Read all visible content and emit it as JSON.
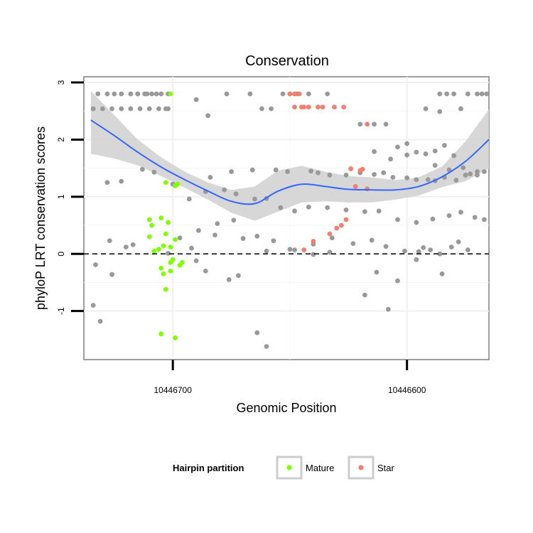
{
  "chart_data": {
    "type": "scatter",
    "title": "Conservation",
    "xlabel": "Genomic Position",
    "ylabel": "phyloP LRT conservation scores",
    "x_reversed": true,
    "xlim": [
      10446738,
      10446565
    ],
    "ylim": [
      -1.85,
      3.1
    ],
    "x_ticks": [
      10446700,
      10446600
    ],
    "x_tick_labels": [
      "10446700",
      "10446600"
    ],
    "y_ticks": [
      -1,
      0,
      1,
      2,
      3
    ],
    "y_tick_labels": [
      "-1",
      "0",
      "1",
      "2",
      "3"
    ],
    "reference_line": {
      "y": 0,
      "style": "dashed"
    },
    "grid": true,
    "legend": {
      "title": "Hairpin partition",
      "placement": "bottom",
      "entries": [
        {
          "label": "Mature",
          "color": "#7fff00"
        },
        {
          "label": "Star",
          "color": "#f08070"
        }
      ]
    },
    "colors": {
      "other": "#999999",
      "mature": "#7fff00",
      "star": "#f08070",
      "smooth": "#3366ff",
      "band": "#d3d3d3"
    },
    "smooth": {
      "x": [
        10446735,
        10446725,
        10446715,
        10446705,
        10446695,
        10446685,
        10446675,
        10446665,
        10446655,
        10446645,
        10446635,
        10446625,
        10446615,
        10446605,
        10446595,
        10446585,
        10446575,
        10446565
      ],
      "y": [
        2.34,
        2.07,
        1.78,
        1.52,
        1.3,
        1.1,
        0.92,
        0.88,
        1.1,
        1.22,
        1.18,
        1.13,
        1.12,
        1.12,
        1.18,
        1.35,
        1.62,
        2.0
      ],
      "lo": [
        1.75,
        1.67,
        1.55,
        1.36,
        1.16,
        0.95,
        0.72,
        0.58,
        0.74,
        0.9,
        0.92,
        0.9,
        0.9,
        0.95,
        1.02,
        1.17,
        1.27,
        1.5
      ],
      "hi": [
        2.85,
        2.43,
        2.0,
        1.69,
        1.44,
        1.25,
        1.12,
        1.18,
        1.46,
        1.54,
        1.44,
        1.36,
        1.34,
        1.29,
        1.34,
        1.53,
        1.97,
        2.53
      ]
    },
    "series": [
      {
        "name": "Mature",
        "color": "#7fff00",
        "x": [
          10446701,
          10446698,
          10446703,
          10446699,
          10446705,
          10446702,
          10446703,
          10446699,
          10446701,
          10446700,
          10446696,
          10446697,
          10446704,
          10446703,
          10446705,
          10446699,
          10446704,
          10446706,
          10446708,
          10446710,
          10446709,
          10446701,
          10446710,
          10446701,
          10446705
        ],
        "y": [
          2.8,
          1.22,
          1.25,
          1.19,
          0.63,
          0.55,
          0.35,
          0.25,
          0.12,
          -0.1,
          -0.15,
          -0.2,
          -0.35,
          -0.62,
          -1.4,
          -1.47,
          0.14,
          0.08,
          0.05,
          0.3,
          0.5,
          -0.3,
          0.6,
          -0.15,
          -0.25
        ]
      },
      {
        "name": "Star",
        "color": "#f08070",
        "x": [
          10446650,
          10446648,
          10446646,
          10446650,
          10446645,
          10446648,
          10446644,
          10446642,
          10446638,
          10446636,
          10446631,
          10446627,
          10446624,
          10446620,
          10446619,
          10446622,
          10446617,
          10446626,
          10446628,
          10446630,
          10446633,
          10446640,
          10446644,
          10446617
        ],
        "y": [
          2.8,
          2.8,
          2.8,
          2.8,
          2.57,
          2.57,
          2.57,
          2.57,
          2.57,
          2.57,
          2.57,
          2.57,
          1.49,
          1.46,
          1.48,
          1.18,
          1.14,
          0.6,
          0.5,
          0.45,
          0.35,
          0.22,
          0.07,
          2.27
        ]
      }
    ],
    "other_points": {
      "x": [
        10446732,
        10446728,
        10446725,
        10446722,
        10446718,
        10446715,
        10446712,
        10446709,
        10446705,
        10446702,
        10446734,
        10446730,
        10446726,
        10446722,
        10446718,
        10446714,
        10446710,
        10446706,
        10446703,
        10446715,
        10446711,
        10446707,
        10446702,
        10446690,
        10446685,
        10446677,
        10446667,
        10446662,
        10446658,
        10446653,
        10446647,
        10446642,
        10446634,
        10446620,
        10446614,
        10446609,
        10446604,
        10446600,
        10446596,
        10446592,
        10446588,
        10446584,
        10446580,
        10446574,
        10446570,
        10446566,
        10446614,
        10446607,
        10446600,
        10446588,
        10446582,
        10446576,
        10446573,
        10446570,
        10446586,
        10446583,
        10446580,
        10446577,
        10446568,
        10446586,
        10446592,
        10446684,
        10446675,
        10446666,
        10446656,
        10446651,
        10446641,
        10446638,
        10446633,
        10446626,
        10446620,
        10446614,
        10446610,
        10446606,
        10446600,
        10446596,
        10446591,
        10446588,
        10446584,
        10446579,
        10446575,
        10446570,
        10446567,
        10446728,
        10446722,
        10446713,
        10446708,
        10446700,
        10446693,
        10446686,
        10446678,
        10446673,
        10446665,
        10446660,
        10446654,
        10446648,
        10446642,
        10446634,
        10446626,
        10446618,
        10446612,
        10446604,
        10446596,
        10446589,
        10446582,
        10446577,
        10446571,
        10446567,
        10446697,
        10446689,
        10446681,
        10446674,
        10446664,
        10446657,
        10446648,
        10446640,
        10446632,
        10446623,
        10446615,
        10446609,
        10446601,
        10446593,
        10446586,
        10446578,
        10446733,
        10446727,
        10446717,
        10446702,
        10446692,
        10446682,
        10446670,
        10446660,
        10446650,
        10446640,
        10446633,
        10446613,
        10446604,
        10446596,
        10446585,
        10446574,
        10446734,
        10446731,
        10446726,
        10446720,
        10446690,
        10446686,
        10446676,
        10446672,
        10446664,
        10446660,
        10446618,
        10446608,
        10446595,
        10446590,
        10446581
      ],
      "y": [
        2.8,
        2.8,
        2.8,
        2.8,
        2.8,
        2.8,
        2.8,
        2.8,
        2.8,
        2.8,
        2.54,
        2.54,
        2.54,
        2.54,
        2.54,
        2.54,
        2.54,
        2.54,
        2.54,
        2.8,
        2.8,
        2.8,
        2.54,
        2.7,
        2.42,
        2.8,
        2.8,
        2.54,
        2.54,
        2.8,
        2.8,
        2.8,
        2.8,
        2.27,
        2.27,
        2.27,
        1.87,
        1.93,
        1.78,
        1.75,
        1.8,
        1.9,
        1.72,
        2.8,
        2.8,
        2.8,
        1.79,
        1.66,
        1.73,
        1.55,
        1.47,
        1.51,
        1.4,
        1.38,
        2.8,
        2.8,
        2.8,
        2.54,
        2.8,
        2.49,
        2.54,
        1.34,
        1.44,
        1.47,
        1.47,
        1.44,
        1.45,
        1.42,
        1.38,
        1.38,
        1.42,
        1.39,
        1.42,
        1.34,
        1.33,
        1.3,
        1.3,
        1.28,
        1.34,
        1.29,
        1.38,
        1.44,
        1.44,
        1.25,
        1.27,
        1.48,
        1.43,
        1.22,
        0.96,
        1.09,
        1.12,
        1.05,
        0.96,
        0.97,
        0.81,
        0.75,
        0.82,
        0.81,
        0.77,
        0.74,
        0.75,
        0.6,
        0.55,
        0.61,
        0.67,
        0.73,
        0.64,
        0.6,
        0.28,
        0.41,
        0.53,
        0.59,
        0.31,
        0.23,
        0.07,
        0.17,
        0.28,
        0.18,
        0.24,
        0.13,
        0.05,
        0.11,
        0.0,
        0.21,
        -0.19,
        0.23,
        0.16,
        0.01,
        0.1,
        0.33,
        0.27,
        0.05,
        0.08,
        -0.01,
        0.03,
        -0.32,
        -0.47,
        -0.1,
        -0.35,
        0.07,
        -0.9,
        -1.18,
        -0.36,
        0.12,
        -0.12,
        -0.3,
        -0.45,
        -0.38,
        -1.38,
        -1.62,
        -0.72,
        -0.97,
        0.04,
        0.07,
        0.12
      ]
    }
  }
}
